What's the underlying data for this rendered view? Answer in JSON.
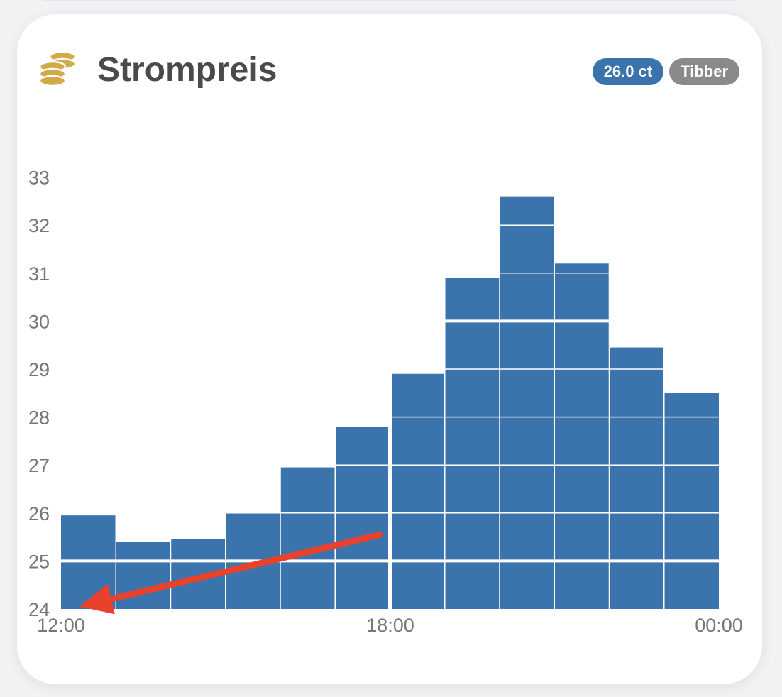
{
  "card": {
    "title": "Strompreis",
    "icon": "coins-icon",
    "badges": {
      "price": "26.0 ct",
      "source": "Tibber"
    }
  },
  "colors": {
    "bar": "#3b74ad",
    "price_badge": "#3b74ad",
    "source_badge": "#8a8a8a",
    "arrow": "#e8412c",
    "icon": "#d4a94a"
  },
  "chart_data": {
    "type": "bar",
    "title": "",
    "xlabel": "",
    "ylabel": "",
    "ylim": [
      24,
      33.3
    ],
    "y_ticks": [
      "24",
      "25",
      "26",
      "27",
      "28",
      "29",
      "30",
      "31",
      "32",
      "33"
    ],
    "x_ticks": [
      "12:00",
      "18:00",
      "00:00"
    ],
    "categories": [
      "12:00",
      "13:00",
      "14:00",
      "15:00",
      "16:00",
      "17:00",
      "18:00",
      "19:00",
      "20:00",
      "21:00",
      "22:00",
      "23:00"
    ],
    "values": [
      25.95,
      25.4,
      25.45,
      26.0,
      26.95,
      27.8,
      28.9,
      30.9,
      32.6,
      31.2,
      29.45,
      28.5
    ],
    "highlight_lines": [
      25,
      30
    ],
    "annotation": {
      "type": "arrow",
      "from": {
        "x": "18:00",
        "y": 25.55
      },
      "to": {
        "x": "12:00",
        "y": 24.05
      }
    },
    "grid": true
  }
}
